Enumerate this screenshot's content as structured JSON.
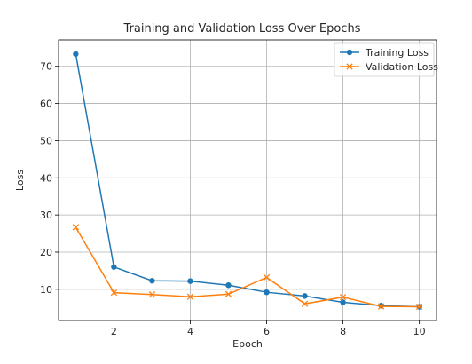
{
  "chart_data": {
    "type": "line",
    "title": "Training and Validation Loss Over Epochs",
    "xlabel": "Epoch",
    "ylabel": "Loss",
    "x": [
      1,
      2,
      3,
      4,
      5,
      6,
      7,
      8,
      9,
      10
    ],
    "xticks": [
      2,
      4,
      6,
      8,
      10
    ],
    "yticks": [
      10,
      20,
      30,
      40,
      50,
      60,
      70
    ],
    "xlim": [
      0.55,
      10.45
    ],
    "ylim": [
      1.6,
      77.1
    ],
    "grid": true,
    "legend_position": "top-right",
    "series": [
      {
        "name": "Training Loss",
        "color": "#1f77b4",
        "marker": "circle",
        "values": [
          73.3,
          16.0,
          12.3,
          12.2,
          11.1,
          9.2,
          8.2,
          6.5,
          5.6,
          5.3
        ]
      },
      {
        "name": "Validation Loss",
        "color": "#ff7f0e",
        "marker": "x",
        "values": [
          26.7,
          9.1,
          8.6,
          8.0,
          8.7,
          13.2,
          6.1,
          7.9,
          5.4,
          5.3
        ]
      }
    ]
  }
}
